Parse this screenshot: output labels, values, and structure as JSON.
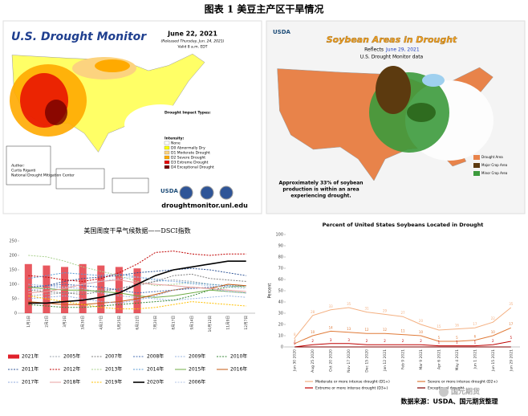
{
  "caption": "图表 1 美豆主产区干旱情况",
  "drought_map": {
    "title": "U.S. Drought Monitor",
    "date": "June 22, 2021",
    "released": "(Released Thursday, Jun. 24, 2021)",
    "valid": "Valid 8 a.m. EDT",
    "impact_title": "Drought Impact Types:",
    "intensity_title": "Intensity:",
    "legend": [
      {
        "label": "None",
        "color": "#ffffff"
      },
      {
        "label": "D0 Abnormally Dry",
        "color": "#ffff00"
      },
      {
        "label": "D1 Moderate Drought",
        "color": "#fcd37f"
      },
      {
        "label": "D2 Severe Drought",
        "color": "#ffaa00"
      },
      {
        "label": "D3 Extreme Drought",
        "color": "#e60000"
      },
      {
        "label": "D4 Exceptional Drought",
        "color": "#730000"
      }
    ],
    "author_title": "Author:",
    "author": "Curtis Riganti",
    "org": "National Drought Mitigation Center",
    "logo": "USDA",
    "url": "droughtmonitor.unl.edu"
  },
  "soy_map": {
    "agency": "USDA",
    "title": "Soybean Areas in Drought",
    "reflects": "Reflects",
    "date": "June 29, 2021",
    "subtitle": "U.S. Drought Monitor data",
    "note": [
      "Approximately 33% of soybean",
      "production is within an area",
      "experiencing drought."
    ],
    "legend": [
      {
        "label": "Drought Area",
        "color": "#e8834a"
      },
      {
        "label": "Major Crop Area",
        "color": "#5c3a0f"
      },
      {
        "label": "Minor Crop Area",
        "color": "#3c9a3c"
      }
    ]
  },
  "chart_data": [
    {
      "type": "line",
      "title": "美国周度干旱气候数据——DSCI指数",
      "categories": [
        "1月1日",
        "2月2日",
        "3月2日",
        "3月30日",
        "4月27日",
        "5月25日",
        "6月22日",
        "7月20日",
        "8月17日",
        "9月14日",
        "10月12日",
        "11月9日",
        "12月7日"
      ],
      "ylim": [
        0,
        250
      ],
      "yticks": [
        0,
        50,
        100,
        150,
        200,
        250
      ],
      "grid": false,
      "series": [
        {
          "name": "2021年",
          "type": "bar",
          "color": "#e0202a",
          "values": [
            170,
            165,
            160,
            170,
            165,
            160,
            155,
            null,
            null,
            null,
            null,
            null,
            null
          ]
        },
        {
          "name": "2005年",
          "color": "#9aa3ad",
          "dash": true,
          "values": [
            60,
            65,
            70,
            75,
            80,
            85,
            100,
            110,
            115,
            110,
            100,
            95,
            90
          ]
        },
        {
          "name": "2007年",
          "color": "#7f7f7f",
          "dash": true,
          "values": [
            80,
            75,
            70,
            65,
            75,
            85,
            95,
            110,
            130,
            135,
            120,
            115,
            110
          ]
        },
        {
          "name": "2008年",
          "color": "#4a6fb5",
          "dash": true,
          "values": [
            90,
            95,
            100,
            95,
            90,
            80,
            70,
            75,
            80,
            85,
            90,
            95,
            90
          ]
        },
        {
          "name": "2009年",
          "color": "#9ab7e0",
          "dash": true,
          "values": [
            100,
            95,
            90,
            85,
            70,
            60,
            55,
            50,
            45,
            50,
            55,
            60,
            55
          ]
        },
        {
          "name": "2010年",
          "color": "#3a8a3a",
          "dash": true,
          "values": [
            30,
            25,
            20,
            20,
            25,
            30,
            35,
            40,
            45,
            60,
            80,
            90,
            95
          ]
        },
        {
          "name": "2011年",
          "color": "#2f5597",
          "dash": true,
          "values": [
            90,
            95,
            110,
            120,
            125,
            130,
            140,
            145,
            150,
            155,
            150,
            140,
            130
          ]
        },
        {
          "name": "2012年",
          "color": "#c00000",
          "dash": true,
          "values": [
            130,
            125,
            115,
            110,
            120,
            140,
            170,
            210,
            215,
            205,
            200,
            205,
            205
          ]
        },
        {
          "name": "2013年",
          "color": "#a9d18e",
          "dash": true,
          "values": [
            200,
            195,
            180,
            160,
            145,
            130,
            110,
            95,
            100,
            105,
            100,
            95,
            90
          ]
        },
        {
          "name": "2014年",
          "color": "#5b9bd5",
          "dash": true,
          "values": [
            120,
            130,
            140,
            135,
            130,
            135,
            125,
            115,
            110,
            105,
            100,
            95,
            95
          ]
        },
        {
          "name": "2015年",
          "color": "#70ad47",
          "values": [
            90,
            85,
            80,
            80,
            75,
            70,
            60,
            55,
            60,
            70,
            80,
            75,
            70
          ]
        },
        {
          "name": "2016年",
          "color": "#c55a11",
          "values": [
            40,
            35,
            30,
            30,
            35,
            40,
            50,
            65,
            80,
            90,
            85,
            100,
            95
          ]
        },
        {
          "name": "2017年",
          "color": "#8faadc",
          "dash": true,
          "values": [
            50,
            55,
            60,
            50,
            40,
            35,
            45,
            60,
            80,
            90,
            85,
            75,
            70
          ]
        },
        {
          "name": "2018年",
          "color": "#e8a0a0",
          "values": [
            70,
            75,
            85,
            100,
            110,
            115,
            105,
            100,
            95,
            90,
            85,
            80,
            75
          ]
        },
        {
          "name": "2019年",
          "color": "#ffc000",
          "dash": true,
          "values": [
            60,
            50,
            40,
            30,
            20,
            15,
            15,
            20,
            30,
            40,
            35,
            30,
            25
          ]
        },
        {
          "name": "2020年",
          "color": "#000000",
          "values": [
            35,
            35,
            40,
            45,
            55,
            70,
            100,
            130,
            150,
            160,
            170,
            180,
            180
          ]
        },
        {
          "name": "2006年",
          "color": "#b4c7e7",
          "dash": true,
          "values": [
            80,
            85,
            90,
            100,
            110,
            120,
            125,
            120,
            110,
            100,
            95,
            90,
            85
          ]
        }
      ]
    },
    {
      "type": "line",
      "title": "Percent of United States Soybeans Located in Drought",
      "y_label": "Percent",
      "categories": [
        "Jun 30 2020",
        "Aug 25 2020",
        "Oct 20 2020",
        "Nov 17 2020",
        "Dec 15 2020",
        "Jan 12 2021",
        "Feb 9 2021",
        "Mar 9 2021",
        "Apr 6 2021",
        "May 4 2021",
        "Jun 1 2021",
        "Jun 15 2021",
        "Jun 29 2021"
      ],
      "ylim": [
        0,
        100
      ],
      "yticks": [
        0,
        10,
        20,
        30,
        40,
        50,
        60,
        70,
        80,
        90,
        100
      ],
      "grid": false,
      "series": [
        {
          "name": "Moderate or more intense drought (D1+)",
          "color": "#f4b183",
          "values": [
            8,
            28,
            33,
            35,
            31,
            29,
            27,
            20,
            15,
            16,
            17,
            22,
            35
          ]
        },
        {
          "name": "Severe or more intense drought (D2+)",
          "color": "#e07b39",
          "values": [
            3,
            10,
            14,
            13,
            12,
            12,
            11,
            10,
            5,
            5,
            6,
            10,
            17
          ]
        },
        {
          "name": "Extreme or more intense drought (D3+)",
          "color": "#c00000",
          "values": [
            0,
            2,
            3,
            3,
            2,
            2,
            2,
            2,
            1,
            1,
            1,
            2,
            5
          ]
        },
        {
          "name": "Exceptional drought",
          "color": "#7f0000",
          "values": [
            0,
            0,
            0,
            0,
            0,
            0,
            0,
            0,
            0,
            0,
            0,
            0,
            0
          ]
        }
      ]
    }
  ],
  "source": "数据来源：USDA、国元期货整理",
  "watermark": "国元期货"
}
